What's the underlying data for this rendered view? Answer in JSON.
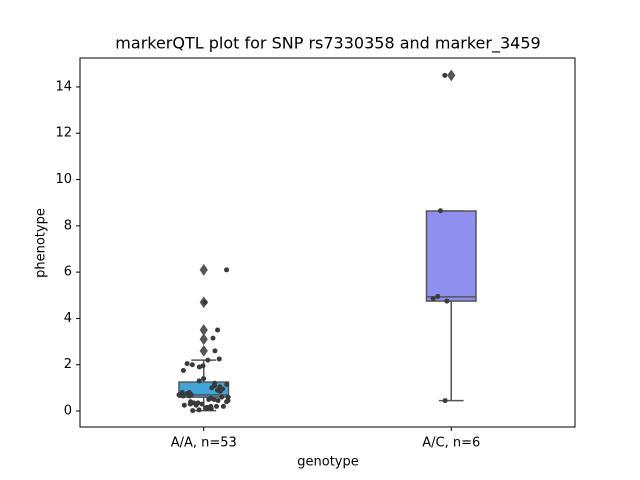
{
  "chart_data": {
    "type": "box",
    "title": "markerQTL plot for SNP rs7330358 and marker_3459",
    "x_label": "genotype",
    "y_label": "phenotype",
    "categories": [
      "A/A, n=53",
      "A/C, n=6"
    ],
    "ylim": [
      -0.69,
      15.25
    ],
    "yticks": [
      0,
      2,
      4,
      6,
      8,
      10,
      12,
      14
    ],
    "boxes": [
      {
        "color": "#3fa6dc",
        "whislo": 0.02,
        "q1": 0.6,
        "median": 0.7,
        "q3": 1.25,
        "whishi": 2.2,
        "fliers": [
          2.6,
          3.1,
          3.5,
          4.7,
          6.1
        ]
      },
      {
        "color": "#8f8ff0",
        "whislo": 0.45,
        "q1": 4.75,
        "median": 4.93,
        "q3": 8.64,
        "whishi": 8.64,
        "fliers": [
          14.5
        ]
      }
    ],
    "point_color": "#3a3a3a",
    "points": [
      [
        6.1,
        4.7,
        3.5,
        3.15,
        2.6,
        2.25,
        2.2,
        2.05,
        2.0,
        1.95,
        1.9,
        1.75,
        1.4,
        1.3,
        1.2,
        1.15,
        1.1,
        1.05,
        1.0,
        0.95,
        0.9,
        0.85,
        0.8,
        0.8,
        0.75,
        0.7,
        0.7,
        0.65,
        0.65,
        0.6,
        0.6,
        0.55,
        0.5,
        0.5,
        0.45,
        0.45,
        0.4,
        0.4,
        0.35,
        0.35,
        0.3,
        0.3,
        0.25,
        0.25,
        0.2,
        0.2,
        0.2,
        0.15,
        0.15,
        0.1,
        0.1,
        0.05,
        0.02
      ],
      [
        14.5,
        8.65,
        4.95,
        4.85,
        4.75,
        0.45
      ]
    ]
  }
}
